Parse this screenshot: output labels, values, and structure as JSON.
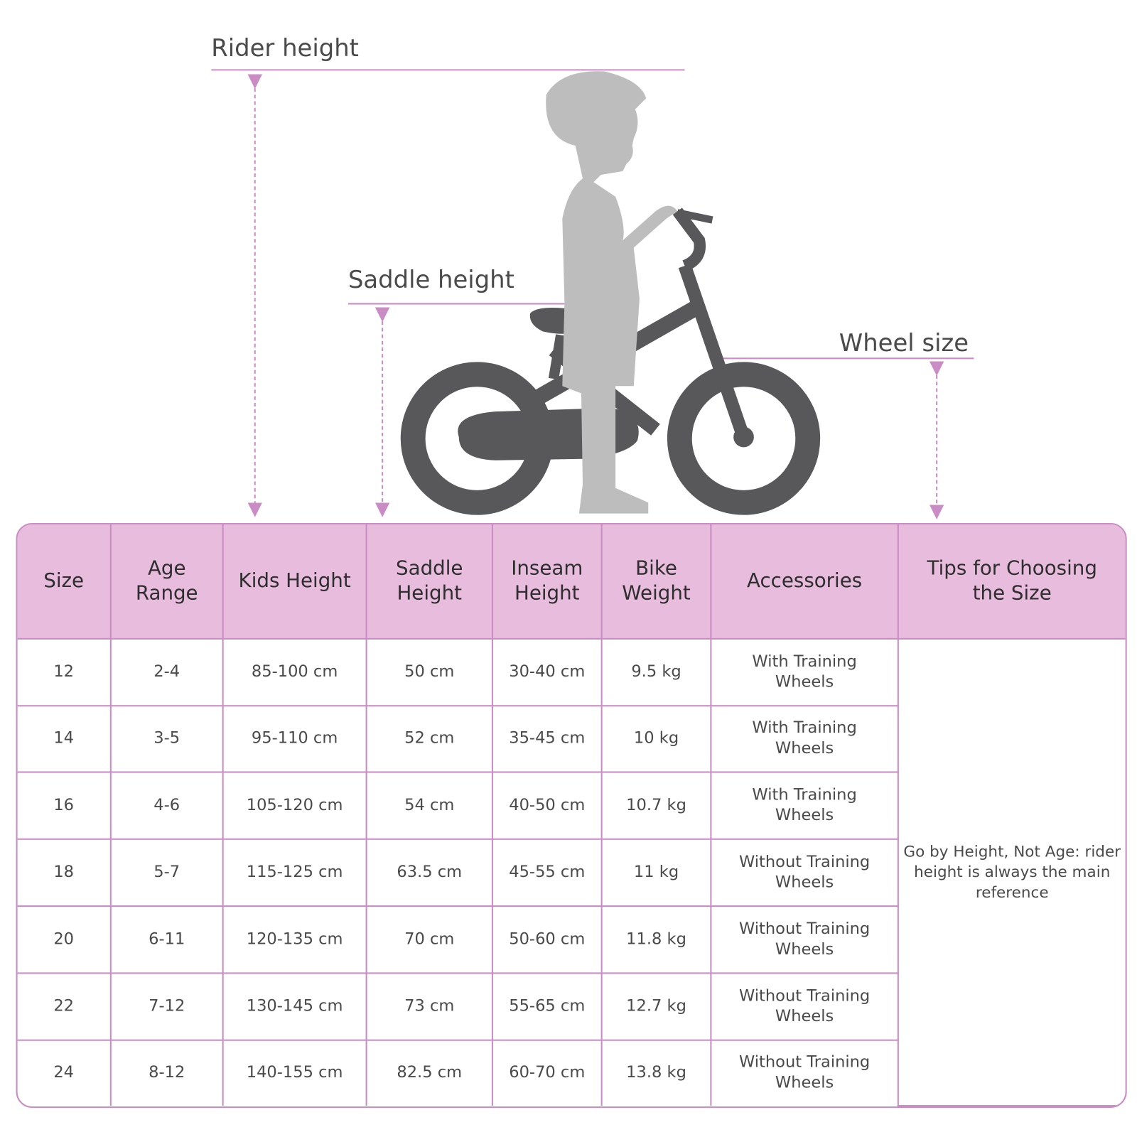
{
  "labels": {
    "rider_height": "Rider height",
    "saddle_height": "Saddle height",
    "wheel_size": "Wheel size"
  },
  "colors": {
    "accent": "#c98cc4",
    "header_bg": "#e8bcdc",
    "bike": "#58585a",
    "rider": "#bdbdbd"
  },
  "table": {
    "headers": [
      "Size",
      "Age Range",
      "Kids Height",
      "Saddle Height",
      "Inseam Height",
      "Bike Weight",
      "Accessories",
      "Tips for Choosing the Size"
    ],
    "rows": [
      [
        "12",
        "2-4",
        "85-100 cm",
        "50 cm",
        "30-40 cm",
        "9.5 kg",
        "With Training Wheels"
      ],
      [
        "14",
        "3-5",
        "95-110 cm",
        "52 cm",
        "35-45 cm",
        "10 kg",
        "With Training Wheels"
      ],
      [
        "16",
        "4-6",
        "105-120 cm",
        "54 cm",
        "40-50 cm",
        "10.7 kg",
        "With Training Wheels"
      ],
      [
        "18",
        "5-7",
        "115-125 cm",
        "63.5 cm",
        "45-55 cm",
        "11 kg",
        "Without Training Wheels"
      ],
      [
        "20",
        "6-11",
        "120-135 cm",
        "70 cm",
        "50-60 cm",
        "11.8 kg",
        "Without Training Wheels"
      ],
      [
        "22",
        "7-12",
        "130-145 cm",
        "73 cm",
        "55-65 cm",
        "12.7 kg",
        "Without Training Wheels"
      ],
      [
        "24",
        "8-12",
        "140-155 cm",
        "82.5 cm",
        "60-70 cm",
        "13.8 kg",
        "Without Training Wheels"
      ]
    ],
    "tip": "Go by Height, Not Age: rider height is always the main reference"
  }
}
